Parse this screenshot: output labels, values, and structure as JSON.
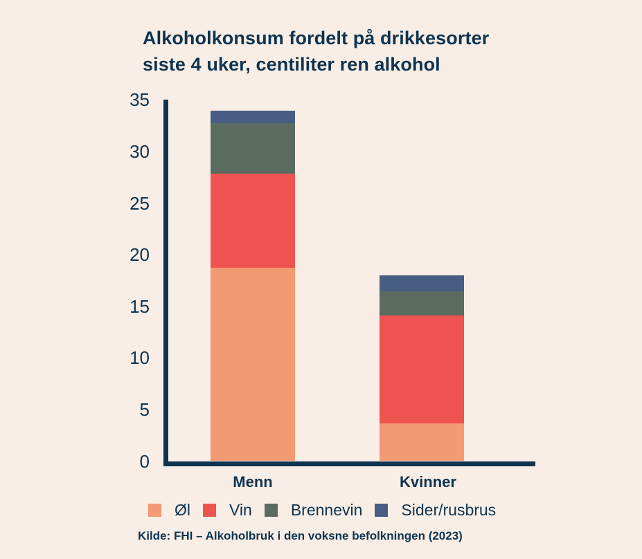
{
  "title": {
    "line1": "Alkoholkonsum fordelt på drikkesorter",
    "line2": "siste 4 uker, centiliter ren alkohol"
  },
  "y_ticks": [
    "35",
    "30",
    "25",
    "20",
    "15",
    "10",
    "5",
    "0"
  ],
  "x_labels": [
    "Menn",
    "Kvinner"
  ],
  "legend": [
    {
      "label": "Øl",
      "color": "#f29a74"
    },
    {
      "label": "Vin",
      "color": "#ef5350"
    },
    {
      "label": "Brennevin",
      "color": "#5a6b60"
    },
    {
      "label": "Sider/rusbrus",
      "color": "#475d83"
    }
  ],
  "source": "Kilde: FHI – Alkoholbruk i den voksne befolkningen (2023)",
  "chart_data": {
    "type": "bar",
    "stacked": true,
    "title": "Alkoholkonsum fordelt på drikkesorter siste 4 uker, centiliter ren alkohol",
    "xlabel": "",
    "ylabel": "",
    "categories": [
      "Menn",
      "Kvinner"
    ],
    "series": [
      {
        "name": "Øl",
        "color": "#f29a74",
        "values": [
          18.7,
          3.6
        ]
      },
      {
        "name": "Vin",
        "color": "#ef5350",
        "values": [
          9.1,
          10.5
        ]
      },
      {
        "name": "Brennevin",
        "color": "#5a6b60",
        "values": [
          4.9,
          2.3
        ]
      },
      {
        "name": "Sider/rusbrus",
        "color": "#475d83",
        "values": [
          1.2,
          1.6
        ]
      }
    ],
    "totals": [
      33.9,
      18.0
    ],
    "ylim": [
      0,
      35
    ],
    "yticks": [
      0,
      5,
      10,
      15,
      20,
      25,
      30,
      35
    ],
    "grid": false,
    "legend_position": "bottom",
    "source": "Kilde: FHI – Alkoholbruk i den voksne befolkningen (2023)"
  }
}
